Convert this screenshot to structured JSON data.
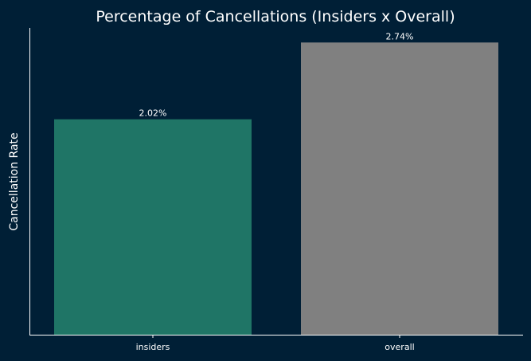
{
  "chart_data": {
    "type": "bar",
    "title": "Percentage of Cancellations (Insiders x Overall)",
    "xlabel": "",
    "ylabel": "Cancellation Rate",
    "categories": [
      "insiders",
      "overall"
    ],
    "values": [
      2.02,
      2.74
    ],
    "data_labels": [
      "2.02%",
      "2.74%"
    ],
    "ylim": [
      0,
      2.877
    ],
    "grid": false,
    "colors": {
      "background": "#001f36",
      "bars": [
        "#1f7566",
        "#808080"
      ],
      "text": "#ffffff",
      "axis": "#ffffff"
    }
  }
}
